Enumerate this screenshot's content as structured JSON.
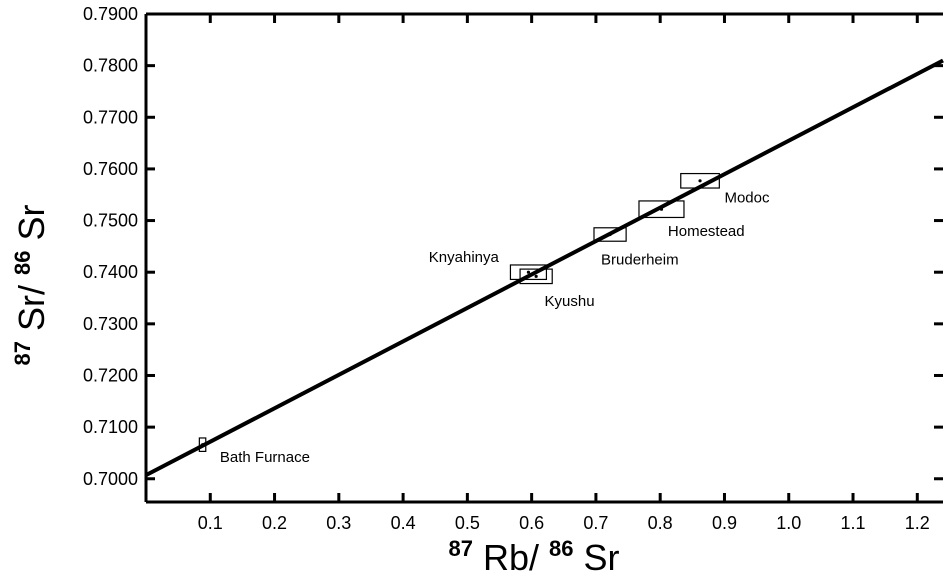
{
  "chart_data": {
    "type": "scatter",
    "title": "",
    "xlabel": {
      "sup1": "87",
      "base1": "Rb/",
      "sup2": "86",
      "base2": "Sr"
    },
    "ylabel": {
      "sup1": "87",
      "base1": "Sr/",
      "sup2": "86",
      "base2": "Sr"
    },
    "xlim": [
      0.0,
      1.24
    ],
    "ylim": [
      0.6955,
      0.79
    ],
    "x_ticks": [
      0.1,
      0.2,
      0.3,
      0.4,
      0.5,
      0.6,
      0.7,
      0.8,
      0.9,
      1.0,
      1.1,
      1.2
    ],
    "x_tick_labels": [
      "0.1",
      "0.2",
      "0.3",
      "0.4",
      "0.5",
      "0.6",
      "0.7",
      "0.8",
      "0.9",
      "1.0",
      "1.1",
      "1.2"
    ],
    "y_ticks": [
      0.7,
      0.71,
      0.72,
      0.73,
      0.74,
      0.75,
      0.76,
      0.77,
      0.78,
      0.79
    ],
    "y_tick_labels": [
      "0.7000",
      "0.7100",
      "0.7200",
      "0.7300",
      "0.7400",
      "0.7500",
      "0.7600",
      "0.7700",
      "0.7800",
      "0.7900"
    ],
    "grid": false,
    "isochron": {
      "x": [
        0.0,
        1.24
      ],
      "y": [
        0.7007,
        0.781
      ]
    },
    "points": [
      {
        "name": "Bath Furnace",
        "x": 0.088,
        "y": 0.7066,
        "x_err": 0.005,
        "y_err": 0.0013
      },
      {
        "name": "Knyahinya",
        "x": 0.595,
        "y": 0.74,
        "x_err": 0.028,
        "y_err": 0.0014
      },
      {
        "name": "Kyushu",
        "x": 0.607,
        "y": 0.7392,
        "x_err": 0.025,
        "y_err": 0.0014
      },
      {
        "name": "Bruderheim",
        "x": 0.722,
        "y": 0.7473,
        "x_err": 0.025,
        "y_err": 0.0013
      },
      {
        "name": "Homestead",
        "x": 0.802,
        "y": 0.7522,
        "x_err": 0.035,
        "y_err": 0.0016
      },
      {
        "name": "Modoc",
        "x": 0.862,
        "y": 0.7577,
        "x_err": 0.03,
        "y_err": 0.0014
      }
    ],
    "annotations": [
      {
        "text": "Bath Furnace",
        "x": 0.115,
        "y": 0.7032
      },
      {
        "text": "Knyahinya",
        "x": 0.44,
        "y": 0.742
      },
      {
        "text": "Kyushu",
        "x": 0.62,
        "y": 0.7335
      },
      {
        "text": "Bruderheim",
        "x": 0.708,
        "y": 0.7415
      },
      {
        "text": "Homestead",
        "x": 0.812,
        "y": 0.747
      },
      {
        "text": "Modoc",
        "x": 0.9,
        "y": 0.7535
      }
    ]
  }
}
